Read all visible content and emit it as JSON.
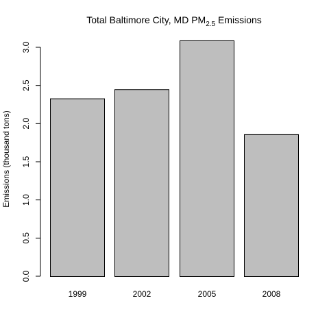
{
  "chart_data": {
    "type": "bar",
    "title_main": "Total Baltimore City, MD PM",
    "title_sub": "2.5",
    "title_end": " Emissions",
    "ylabel": "Emissions (thousand tons)",
    "xlabel": "",
    "categories": [
      "1999",
      "2002",
      "2005",
      "2008"
    ],
    "values": [
      2.33,
      2.45,
      3.09,
      1.86
    ],
    "ylim": [
      0,
      3.0
    ],
    "yticks": [
      "0.0",
      "0.5",
      "1.0",
      "1.5",
      "2.0",
      "2.5",
      "3.0"
    ],
    "grid": false,
    "legend": "none",
    "bar_color": "#bebebe",
    "bar_stroke": "#000000"
  }
}
